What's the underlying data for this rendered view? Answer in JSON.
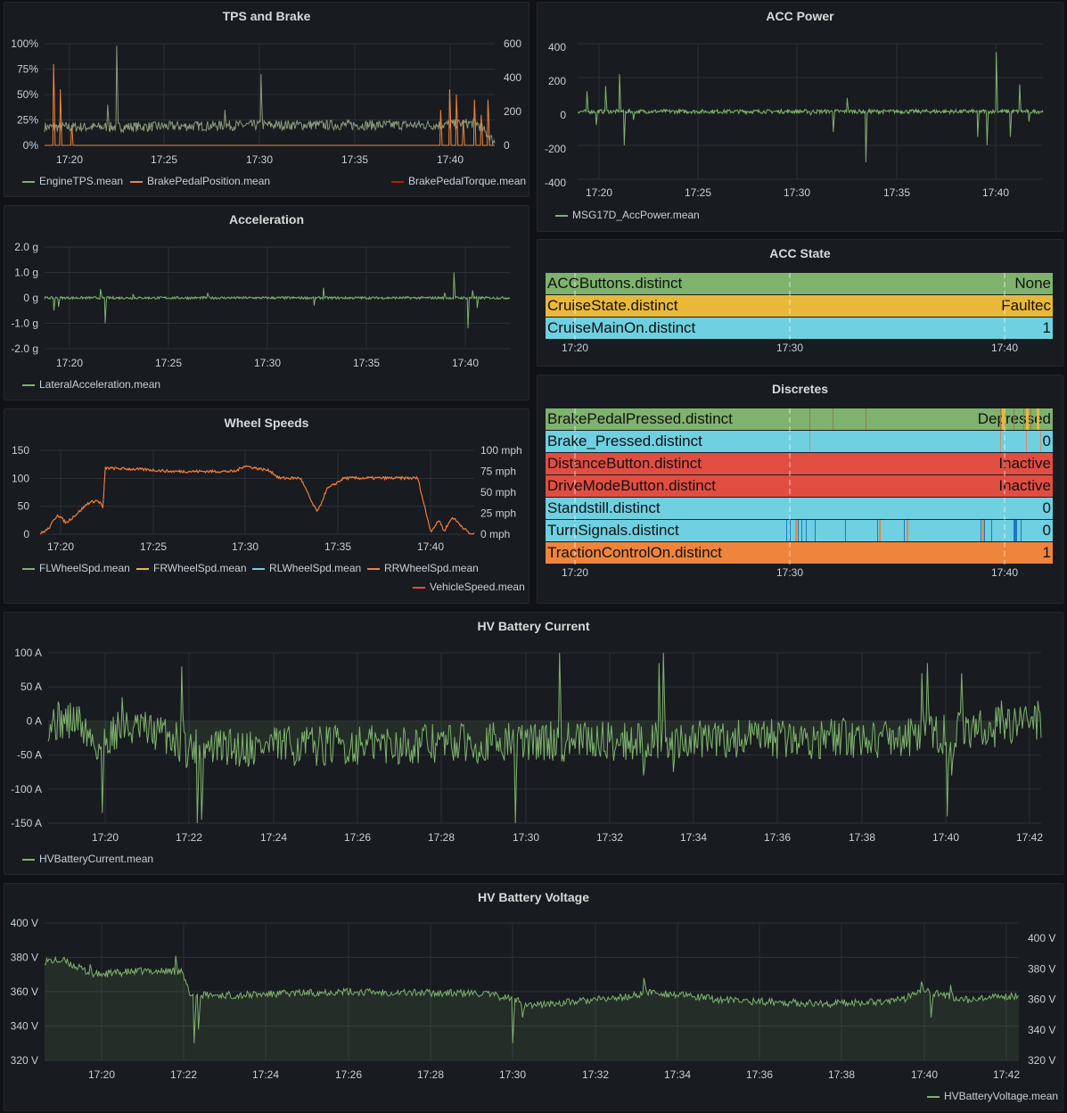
{
  "colors": {
    "green": "#7eb26d",
    "orange": "#ef843c",
    "red": "#e24d42",
    "yellow": "#eab839",
    "blue": "#6ed0e0",
    "darkred": "#bf1b00",
    "darkblue": "#1f78c1",
    "grid": "#2c2f35"
  },
  "panels": {
    "tps": {
      "title": "TPS and Brake",
      "y_left": [
        "100%",
        "75%",
        "50%",
        "25%",
        "0%"
      ],
      "y_right": [
        "600",
        "400",
        "200",
        "0"
      ],
      "x": [
        "17:20",
        "17:25",
        "17:30",
        "17:35",
        "17:40"
      ],
      "legend": [
        {
          "label": "EngineTPS.mean",
          "color": "#7eb26d"
        },
        {
          "label": "BrakePedalPosition.mean",
          "color": "#ef843c"
        },
        {
          "label": "BrakePedalTorque.mean",
          "color": "#bf1b00"
        }
      ]
    },
    "acc_power": {
      "title": "ACC Power",
      "y_left": [
        "400",
        "200",
        "0",
        "-200",
        "-400"
      ],
      "x": [
        "17:20",
        "17:25",
        "17:30",
        "17:35",
        "17:40"
      ],
      "legend": [
        {
          "label": "MSG17D_AccPower.mean",
          "color": "#7eb26d"
        }
      ]
    },
    "accel": {
      "title": "Acceleration",
      "y_left": [
        "2.0 g",
        "1.0 g",
        "0 g",
        "-1.0 g",
        "-2.0 g"
      ],
      "x": [
        "17:20",
        "17:25",
        "17:30",
        "17:35",
        "17:40"
      ],
      "legend": [
        {
          "label": "LateralAcceleration.mean",
          "color": "#7eb26d"
        }
      ]
    },
    "acc_state": {
      "title": "ACC State",
      "x": [
        "17:20",
        "17:30",
        "17:40"
      ],
      "rows": [
        {
          "label": "ACCButtons.distinct",
          "value": "None",
          "color": "#7eb26d"
        },
        {
          "label": "CruiseState.distinct",
          "value": "Faultec",
          "color": "#eab839"
        },
        {
          "label": "CruiseMainOn.distinct",
          "value": "1",
          "color": "#6ed0e0"
        }
      ]
    },
    "wheel": {
      "title": "Wheel Speeds",
      "y_left": [
        "150",
        "100",
        "50",
        "0"
      ],
      "y_right": [
        "100 mph",
        "75 mph",
        "50 mph",
        "25 mph",
        "0 mph"
      ],
      "x": [
        "17:20",
        "17:25",
        "17:30",
        "17:35",
        "17:40"
      ],
      "legend": [
        {
          "label": "FLWheelSpd.mean",
          "color": "#7eb26d"
        },
        {
          "label": "FRWheelSpd.mean",
          "color": "#eab839"
        },
        {
          "label": "RLWheelSpd.mean",
          "color": "#6ed0e0"
        },
        {
          "label": "RRWheelSpd.mean",
          "color": "#ef843c"
        },
        {
          "label": "VehicleSpeed.mean",
          "color": "#e24d42"
        }
      ]
    },
    "discretes": {
      "title": "Discretes",
      "x": [
        "17:20",
        "17:30",
        "17:40"
      ],
      "rows": [
        {
          "label": "BrakePedalPressed.distinct",
          "value": "Depressed",
          "color": "#7eb26d"
        },
        {
          "label": "Brake_Pressed.distinct",
          "value": "0",
          "color": "#6ed0e0"
        },
        {
          "label": "DistanceButton.distinct",
          "value": "Inactive",
          "color": "#e24d42"
        },
        {
          "label": "DriveModeButton.distinct",
          "value": "Inactive",
          "color": "#e24d42"
        },
        {
          "label": "Standstill.distinct",
          "value": "0",
          "color": "#6ed0e0"
        },
        {
          "label": "TurnSignals.distinct",
          "value": "0",
          "color": "#6ed0e0"
        },
        {
          "label": "TractionControlOn.distinct",
          "value": "1",
          "color": "#ef843c"
        }
      ]
    },
    "hv_current": {
      "title": "HV Battery Current",
      "y_left": [
        "100 A",
        "50 A",
        "0 A",
        "-50 A",
        "-100 A",
        "-150 A"
      ],
      "x": [
        "17:20",
        "17:22",
        "17:24",
        "17:26",
        "17:28",
        "17:30",
        "17:32",
        "17:34",
        "17:36",
        "17:38",
        "17:40",
        "17:42"
      ],
      "legend": [
        {
          "label": "HVBatteryCurrent.mean",
          "color": "#7eb26d"
        }
      ]
    },
    "hv_voltage": {
      "title": "HV Battery Voltage",
      "y_left": [
        "400 V",
        "380 V",
        "360 V",
        "340 V",
        "320 V"
      ],
      "y_right": [
        "400 V",
        "380 V",
        "360 V",
        "340 V",
        "320 V"
      ],
      "x": [
        "17:20",
        "17:22",
        "17:24",
        "17:26",
        "17:28",
        "17:30",
        "17:32",
        "17:34",
        "17:36",
        "17:38",
        "17:40",
        "17:42"
      ],
      "legend": [
        {
          "label": "HVBatteryVoltage.mean",
          "color": "#7eb26d"
        }
      ]
    }
  },
  "chart_data": [
    {
      "type": "line",
      "title": "TPS and Brake",
      "x": [
        "17:19",
        "17:20",
        "17:22",
        "17:25",
        "17:30",
        "17:35",
        "17:39",
        "17:40",
        "17:41",
        "17:42"
      ],
      "series": [
        {
          "name": "EngineTPS.mean",
          "values": [
            20,
            22,
            98,
            20,
            18,
            20,
            22,
            20,
            25,
            5
          ]
        },
        {
          "name": "BrakePedalPosition.mean",
          "values": [
            80,
            5,
            0,
            0,
            0,
            0,
            55,
            50,
            60,
            0
          ]
        },
        {
          "name": "BrakePedalTorque.mean",
          "values": [
            0,
            0,
            0,
            0,
            0,
            0,
            0,
            0,
            0,
            0
          ]
        }
      ],
      "ylim": [
        0,
        100
      ],
      "y2lim": [
        0,
        600
      ]
    },
    {
      "type": "line",
      "title": "ACC Power",
      "x": [
        "17:19",
        "17:20",
        "17:21",
        "17:25",
        "17:30",
        "17:33",
        "17:35",
        "17:39",
        "17:40",
        "17:41",
        "17:42"
      ],
      "series": [
        {
          "name": "MSG17D_AccPower.mean",
          "values": [
            0,
            120,
            230,
            0,
            -30,
            -300,
            0,
            -200,
            360,
            -150,
            0
          ]
        }
      ],
      "ylim": [
        -400,
        400
      ]
    },
    {
      "type": "line",
      "title": "Acceleration",
      "x": [
        "17:19",
        "17:20",
        "17:22",
        "17:30",
        "17:34",
        "17:40",
        "17:41",
        "17:42"
      ],
      "series": [
        {
          "name": "LateralAcceleration.mean",
          "values": [
            0,
            -0.6,
            -1.0,
            0,
            0.4,
            1.0,
            -1.2,
            0
          ]
        }
      ],
      "ylim": [
        -2,
        2
      ]
    },
    {
      "type": "line",
      "title": "Wheel Speeds",
      "x": [
        "17:19",
        "17:20",
        "17:21",
        "17:22",
        "17:25",
        "17:30",
        "17:32",
        "17:33",
        "17:35",
        "17:39",
        "17:40",
        "17:41"
      ],
      "series": [
        {
          "name": "VehicleSpeed.mean",
          "values": [
            0,
            50,
            70,
            115,
            110,
            120,
            110,
            40,
            105,
            100,
            0,
            0
          ]
        }
      ],
      "ylim": [
        0,
        150
      ]
    },
    {
      "type": "line",
      "title": "HV Battery Current",
      "x": [
        "17:19",
        "17:20",
        "17:21",
        "17:22",
        "17:26",
        "17:30",
        "17:31",
        "17:33",
        "17:34",
        "17:39",
        "17:40",
        "17:41",
        "17:42"
      ],
      "series": [
        {
          "name": "HVBatteryCurrent.mean",
          "values": [
            0,
            -130,
            35,
            -150,
            -30,
            -150,
            100,
            100,
            -80,
            80,
            -140,
            50,
            0
          ]
        }
      ],
      "ylim": [
        -150,
        100
      ]
    },
    {
      "type": "line",
      "title": "HV Battery Voltage",
      "x": [
        "17:19",
        "17:20",
        "17:21",
        "17:22",
        "17:25",
        "17:30",
        "17:33",
        "17:40",
        "17:42"
      ],
      "series": [
        {
          "name": "HVBatteryVoltage.mean",
          "values": [
            378,
            372,
            372,
            330,
            360,
            330,
            368,
            346,
            358
          ]
        }
      ],
      "ylim": [
        320,
        400
      ]
    }
  ]
}
